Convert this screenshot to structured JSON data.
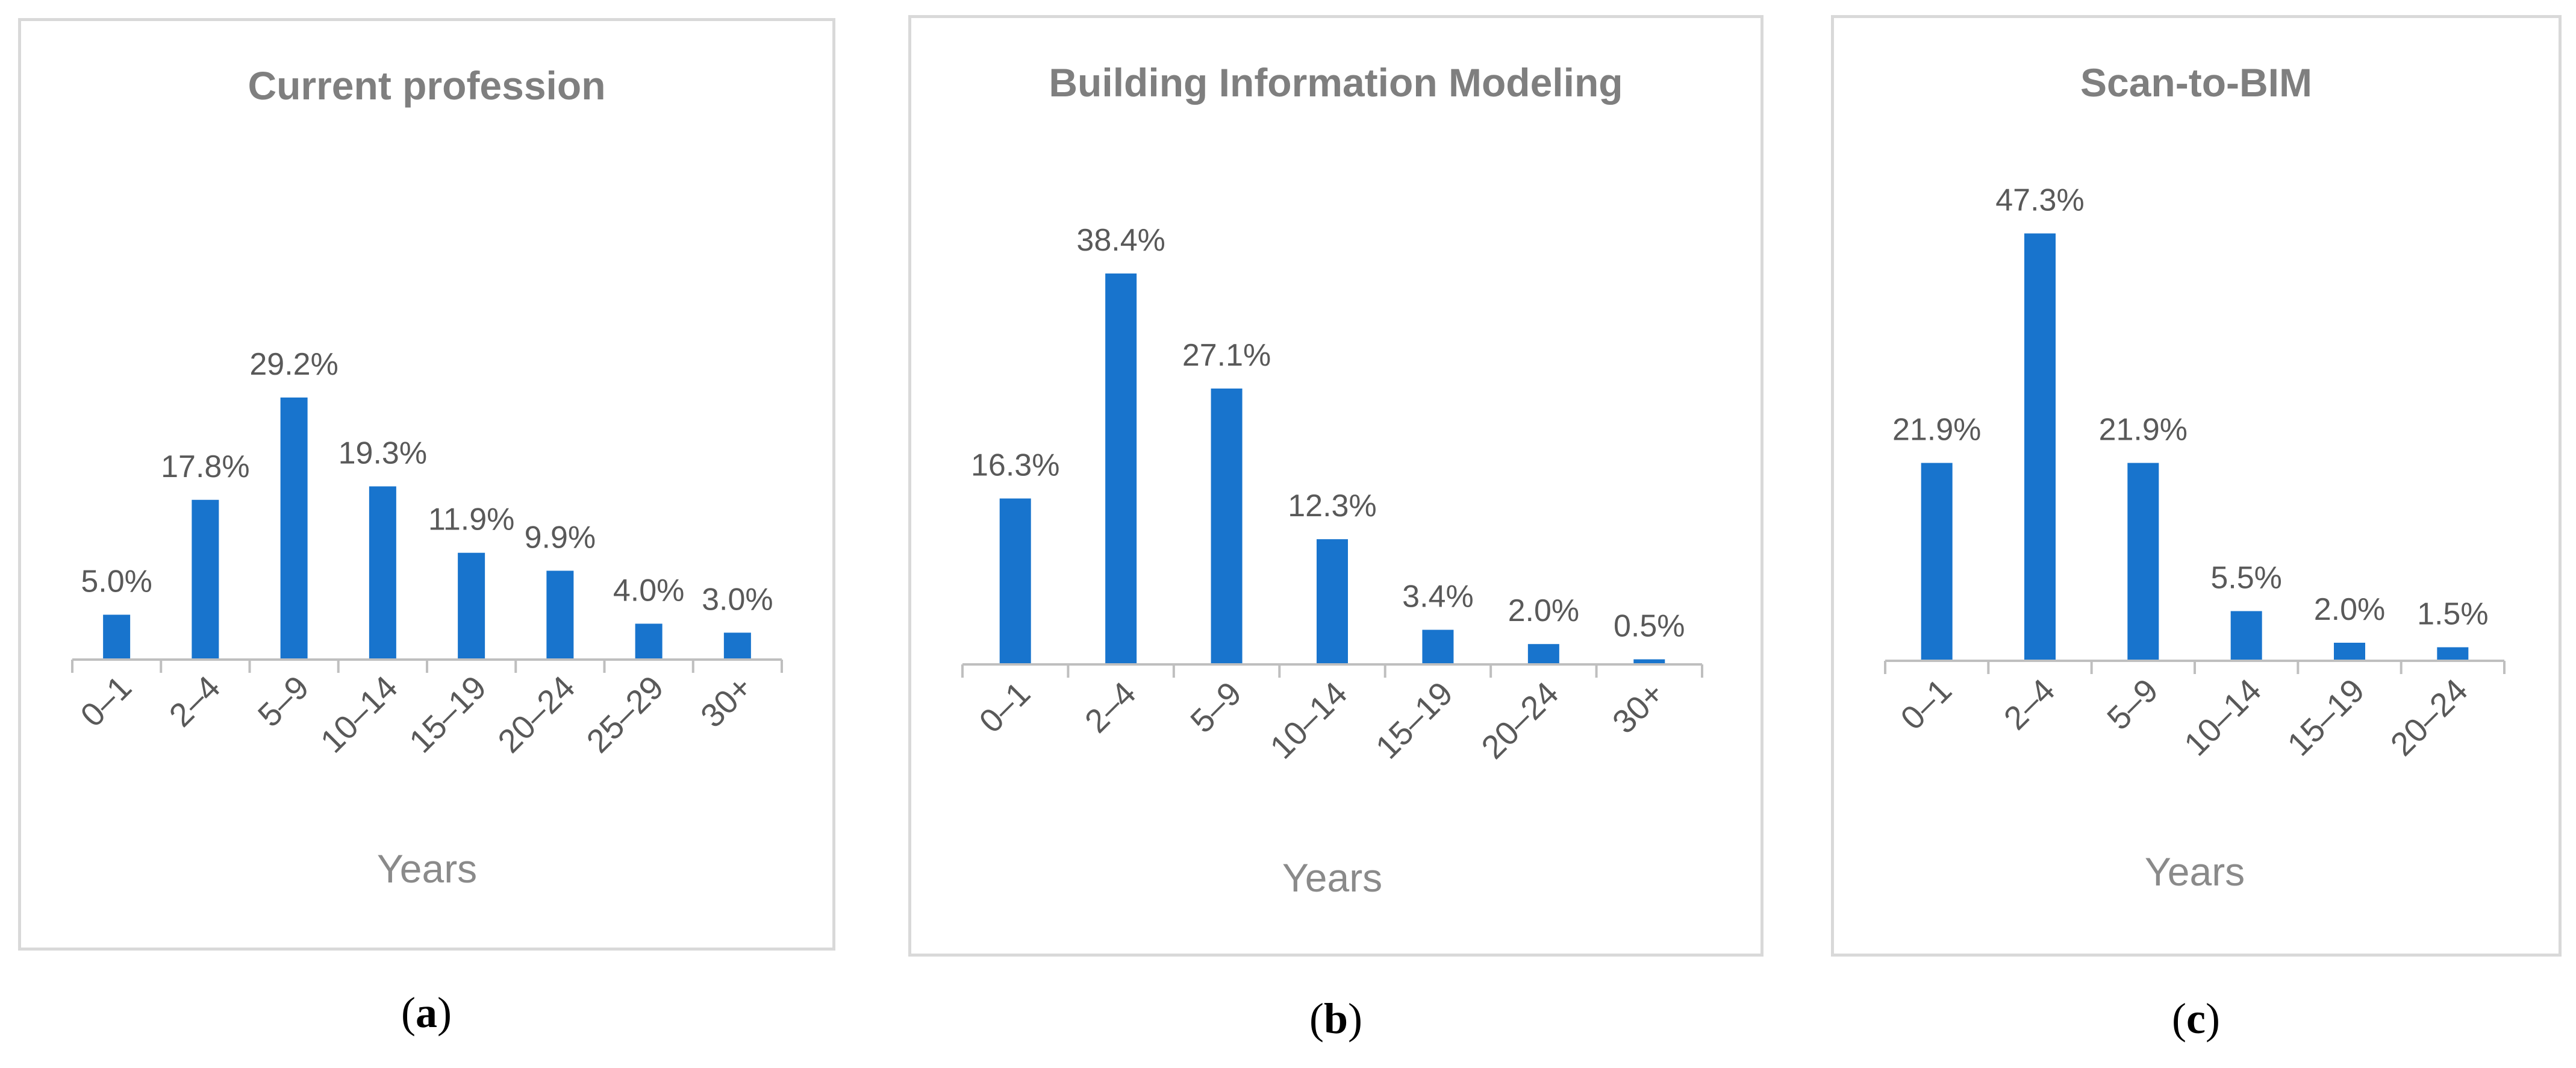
{
  "chart_data": [
    {
      "type": "bar",
      "title": "Current profession",
      "xlabel": "Years",
      "ylabel": "",
      "categories": [
        "0–1",
        "2–4",
        "5–9",
        "10–14",
        "15–19",
        "20–24",
        "25–29",
        "30+"
      ],
      "values": [
        5.0,
        17.8,
        29.2,
        19.3,
        11.9,
        9.9,
        4.0,
        3.0
      ],
      "value_labels": [
        "5.0%",
        "17.8%",
        "29.2%",
        "19.3%",
        "11.9%",
        "9.9%",
        "4.0%",
        "3.0%"
      ],
      "ylim": [
        0,
        50
      ],
      "grid": false,
      "color": "#1874cd",
      "caption": "a"
    },
    {
      "type": "bar",
      "title": "Building Information Modeling",
      "xlabel": "Years",
      "ylabel": "",
      "categories": [
        "0–1",
        "2–4",
        "5–9",
        "10–14",
        "15–19",
        "20–24",
        "30+"
      ],
      "values": [
        16.3,
        38.4,
        27.1,
        12.3,
        3.4,
        2.0,
        0.5
      ],
      "value_labels": [
        "16.3%",
        "38.4%",
        "27.1%",
        "12.3%",
        "3.4%",
        "2.0%",
        "0.5%"
      ],
      "ylim": [
        0,
        50
      ],
      "grid": false,
      "color": "#1874cd",
      "caption": "b"
    },
    {
      "type": "bar",
      "title": "Scan-to-BIM",
      "xlabel": "Years",
      "ylabel": "",
      "categories": [
        "0–1",
        "2–4",
        "5–9",
        "10–14",
        "15–19",
        "20–24"
      ],
      "values": [
        21.9,
        47.3,
        21.9,
        5.5,
        2.0,
        1.5
      ],
      "value_labels": [
        "21.9%",
        "47.3%",
        "21.9%",
        "5.5%",
        "2.0%",
        "1.5%"
      ],
      "ylim": [
        0,
        50
      ],
      "grid": false,
      "color": "#1874cd",
      "caption": "c"
    }
  ]
}
